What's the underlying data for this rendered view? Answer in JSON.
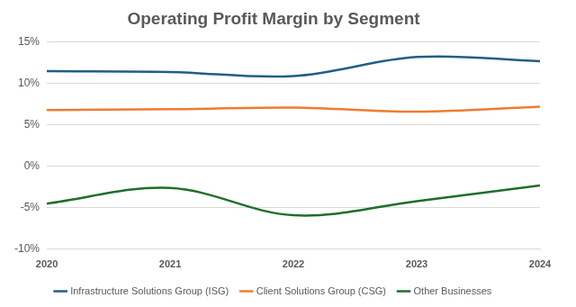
{
  "chart_data": {
    "type": "line",
    "title": "Operating Profit Margin by Segment",
    "categories": [
      "2020",
      "2021",
      "2022",
      "2023",
      "2024"
    ],
    "series": [
      {
        "name": "Infrastructure Solutions Group (ISG)",
        "color": "#215e86",
        "values": [
          11.5,
          11.4,
          10.9,
          13.2,
          12.7
        ]
      },
      {
        "name": "Client Solutions Group (CSG)",
        "color": "#ed7d31",
        "values": [
          6.8,
          6.9,
          7.1,
          6.6,
          7.2
        ]
      },
      {
        "name": "Other Businesses",
        "color": "#1f6e2b",
        "values": [
          -4.5,
          -2.6,
          -5.9,
          -4.2,
          -2.3
        ]
      }
    ],
    "ylim": [
      -10,
      15
    ],
    "yticks": [
      {
        "value": -10,
        "label": "-10%"
      },
      {
        "value": -5,
        "label": "-5%"
      },
      {
        "value": 0,
        "label": "0%"
      },
      {
        "value": 5,
        "label": "5%"
      },
      {
        "value": 10,
        "label": "10%"
      },
      {
        "value": 15,
        "label": "15%"
      }
    ],
    "grid": true,
    "legend": "bottom"
  }
}
